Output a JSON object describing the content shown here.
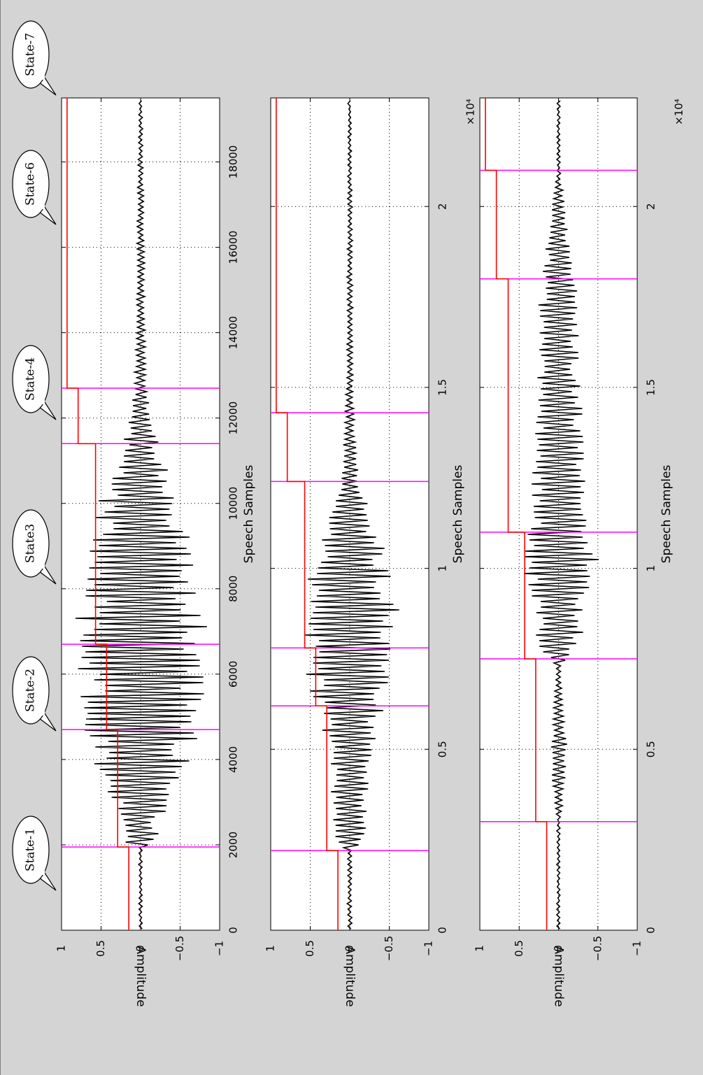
{
  "colors": {
    "background": "#d4d4d4",
    "axes_background": "#ffffff",
    "waveform": "#000000",
    "state_level": "#ff0000",
    "boundary": "#ff00ff",
    "grid": "#000000"
  },
  "callouts": [
    "State-1",
    "State-2",
    "State3",
    "State-4",
    "State-6",
    "State-7"
  ],
  "chart_data": [
    {
      "type": "line",
      "orientation": "rotated-90-clockwise",
      "xlabel": "Speech Samples",
      "ylabel": "Amplitude",
      "xlim": [
        0,
        19500
      ],
      "ylim": [
        -1,
        1
      ],
      "grid": true,
      "x_ticks": [
        0,
        2000,
        4000,
        6000,
        8000,
        10000,
        12000,
        14000,
        16000,
        18000
      ],
      "x_tick_labels": [
        "0",
        "2000",
        "4000",
        "6000",
        "8000",
        "10000",
        "12000",
        "14000",
        "16000",
        "18000"
      ],
      "x_multiplier": "",
      "y_ticks": [
        1,
        0.5,
        0,
        -0.5,
        -1
      ],
      "y_tick_labels": [
        "1",
        "0.5",
        "0",
        "−0.5",
        "−1"
      ],
      "state_boundaries": [
        1950,
        4700,
        6700,
        11400,
        12700
      ],
      "state_levels": [
        {
          "x_start": 0,
          "x_end": 1950,
          "level": 0.15
        },
        {
          "x_start": 1950,
          "x_end": 4700,
          "level": 0.29
        },
        {
          "x_start": 4700,
          "x_end": 6700,
          "level": 0.43
        },
        {
          "x_start": 6700,
          "x_end": 11400,
          "level": 0.57
        },
        {
          "x_start": 11400,
          "x_end": 12700,
          "level": 0.79
        },
        {
          "x_start": 12700,
          "x_end": 19500,
          "level": 0.93
        }
      ],
      "waveform_envelope": {
        "x": [
          0,
          1950,
          2100,
          2500,
          3500,
          4500,
          5200,
          6200,
          7200,
          7800,
          9000,
          10000,
          11000,
          11600,
          12000,
          12700,
          14000,
          16000,
          18000,
          19500
        ],
        "amplitude": [
          0.02,
          0.02,
          0.3,
          0.22,
          0.55,
          0.72,
          0.8,
          0.82,
          0.87,
          0.72,
          0.65,
          0.55,
          0.3,
          0.2,
          0.15,
          0.08,
          0.06,
          0.05,
          0.03,
          0.02
        ]
      }
    },
    {
      "type": "line",
      "orientation": "rotated-90-clockwise",
      "xlabel": "Speech Samples",
      "ylabel": "Amplitude",
      "xlim": [
        0,
        23000
      ],
      "ylim": [
        -1,
        1
      ],
      "grid": true,
      "x_ticks": [
        0,
        5000,
        10000,
        15000,
        20000
      ],
      "x_tick_labels": [
        "0",
        "0.5",
        "1",
        "1.5",
        "2"
      ],
      "x_multiplier": "×10⁴",
      "y_ticks": [
        1,
        0.5,
        0,
        -0.5,
        -1
      ],
      "y_tick_labels": [
        "1",
        "0.5",
        "0",
        "−0.5",
        "−1"
      ],
      "state_boundaries": [
        2200,
        6200,
        7800,
        12400,
        14300
      ],
      "state_levels": [
        {
          "x_start": 0,
          "x_end": 2200,
          "level": 0.15
        },
        {
          "x_start": 2200,
          "x_end": 6200,
          "level": 0.29
        },
        {
          "x_start": 6200,
          "x_end": 7800,
          "level": 0.43
        },
        {
          "x_start": 7800,
          "x_end": 12400,
          "level": 0.57
        },
        {
          "x_start": 12400,
          "x_end": 14300,
          "level": 0.79
        },
        {
          "x_start": 14300,
          "x_end": 23000,
          "level": 0.93
        }
      ],
      "waveform_envelope": {
        "x": [
          0,
          2200,
          2400,
          4000,
          5500,
          6500,
          7000,
          7800,
          8800,
          9500,
          10500,
          11500,
          12200,
          13000,
          14300,
          16000,
          20000,
          23000
        ],
        "amplitude": [
          0.03,
          0.03,
          0.2,
          0.25,
          0.35,
          0.5,
          0.6,
          0.62,
          0.65,
          0.55,
          0.45,
          0.28,
          0.15,
          0.1,
          0.06,
          0.04,
          0.03,
          0.02
        ]
      }
    },
    {
      "type": "line",
      "orientation": "rotated-90-clockwise",
      "xlabel": "Speech Samples",
      "ylabel": "Amplitude",
      "xlim": [
        0,
        23000
      ],
      "ylim": [
        -1,
        1
      ],
      "grid": true,
      "x_ticks": [
        0,
        5000,
        10000,
        15000,
        20000
      ],
      "x_tick_labels": [
        "0",
        "0.5",
        "1",
        "1.5",
        "2"
      ],
      "x_multiplier": "×10⁴",
      "y_ticks": [
        1,
        0.5,
        0,
        -0.5,
        -1
      ],
      "y_tick_labels": [
        "1",
        "0.5",
        "0",
        "−0.5",
        "−1"
      ],
      "state_boundaries": [
        3000,
        7500,
        11000,
        18000,
        21000
      ],
      "state_levels": [
        {
          "x_start": 0,
          "x_end": 3000,
          "level": 0.15
        },
        {
          "x_start": 3000,
          "x_end": 7500,
          "level": 0.29
        },
        {
          "x_start": 7500,
          "x_end": 11000,
          "level": 0.43
        },
        {
          "x_start": 11000,
          "x_end": 18000,
          "level": 0.64
        },
        {
          "x_start": 18000,
          "x_end": 21000,
          "level": 0.79
        },
        {
          "x_start": 21000,
          "x_end": 23000,
          "level": 0.93
        }
      ],
      "waveform_envelope": {
        "x": [
          0,
          3000,
          3500,
          5000,
          6500,
          7300,
          7600,
          8000,
          9500,
          10000,
          10500,
          11000,
          12000,
          14000,
          16000,
          17000,
          18000,
          19500,
          20500,
          21000,
          23000
        ],
        "amplitude": [
          0.02,
          0.02,
          0.06,
          0.12,
          0.05,
          0.03,
          0.2,
          0.3,
          0.4,
          0.55,
          0.5,
          0.4,
          0.35,
          0.32,
          0.25,
          0.28,
          0.22,
          0.12,
          0.05,
          0.02,
          0.02
        ]
      }
    }
  ]
}
